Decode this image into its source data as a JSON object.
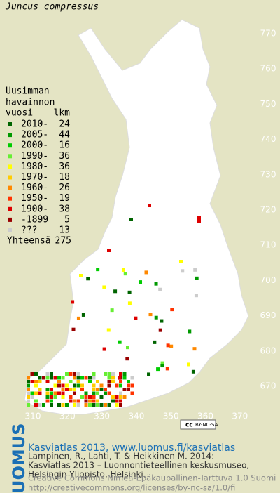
{
  "title": "Juncus compressus",
  "legend": {
    "heading": [
      "Uusimman",
      "havainnon"
    ],
    "col_year": "vuosi",
    "col_count": "lkm",
    "rows": [
      {
        "label": "2010-",
        "count": 24,
        "color": "#006400"
      },
      {
        "label": "2005-",
        "count": 44,
        "color": "#009900"
      },
      {
        "label": "2000-",
        "count": 16,
        "color": "#00cc00"
      },
      {
        "label": "1990-",
        "count": 36,
        "color": "#66ee33"
      },
      {
        "label": "1980-",
        "count": 36,
        "color": "#ffff00"
      },
      {
        "label": "1970-",
        "count": 18,
        "color": "#ffcc00"
      },
      {
        "label": "1960-",
        "count": 26,
        "color": "#ff8800"
      },
      {
        "label": "1950-",
        "count": 19,
        "color": "#ff3300"
      },
      {
        "label": "1900-",
        "count": 38,
        "color": "#dd0000"
      },
      {
        "label": "-1899",
        "count": 5,
        "color": "#990000"
      },
      {
        "label": "???",
        "count": 13,
        "color": "#cccccc"
      }
    ],
    "total_label": "Yhteensä",
    "total": 275
  },
  "axes": {
    "x_labels": [
      310,
      320,
      330,
      340,
      350,
      360,
      370
    ],
    "y_labels": [
      770,
      760,
      750,
      740,
      730,
      720,
      710,
      700,
      690,
      680,
      670
    ]
  },
  "license_badge": {
    "cc": "cc",
    "terms": "BY-NC-SA"
  },
  "footer": {
    "brand": "LUOMUS",
    "link": "Kasviatlas 2013, www.luomus.fi/kasviatlas",
    "citation": [
      "Lampinen, R., Lahti, T. & Heikkinen M. 2014:",
      "Kasviatlas 2013 – Luonnontieteellinen keskusmuseo,",
      "Helsingin Yliopisto, Helsinki."
    ],
    "license": [
      "Creative Commons Nimeä-Epäkaupallinen-Tarttuva 1.0 Suomi",
      "http://creativecommons.org/licenses/by-nc-sa/1.0/fi"
    ]
  }
}
